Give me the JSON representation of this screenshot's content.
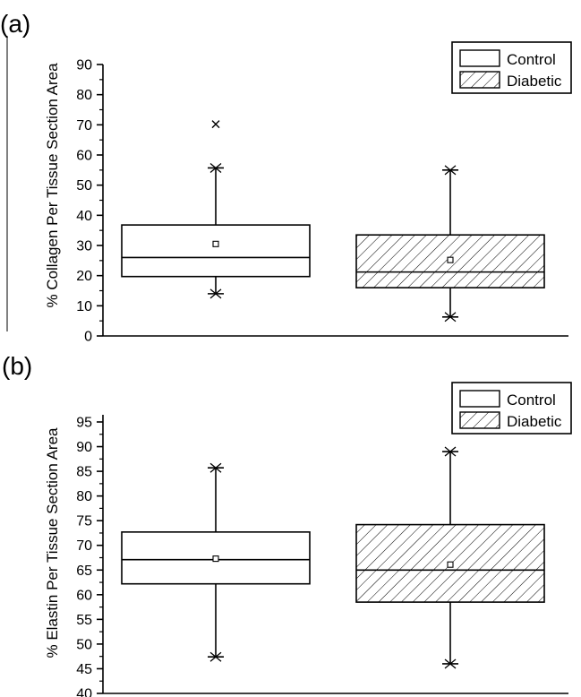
{
  "chart_data": [
    {
      "type": "box",
      "panel_label": "(a)",
      "title": "",
      "xlabel": "",
      "ylabel": "% Collagen Per Tissue Section Area",
      "ylim": [
        0,
        90
      ],
      "yticks": [
        0,
        10,
        20,
        30,
        40,
        50,
        60,
        70,
        80,
        90
      ],
      "legend": {
        "placement": "top-right",
        "entries": [
          "Control",
          "Diabetic"
        ]
      },
      "series": [
        {
          "name": "Control",
          "pattern": "none",
          "whisker_low": 14,
          "q1": 19.7,
          "median": 26,
          "q3": 36.8,
          "whisker_high": 55.7,
          "mean": 30.5,
          "outliers": [
            70.2
          ]
        },
        {
          "name": "Diabetic",
          "pattern": "hatch",
          "whisker_low": 6.3,
          "q1": 16,
          "median": 21.2,
          "q3": 33.5,
          "whisker_high": 55,
          "mean": 25.2,
          "outliers": []
        }
      ]
    },
    {
      "type": "box",
      "panel_label": "(b)",
      "title": "",
      "xlabel": "",
      "ylabel": "% Elastin Per Tissue Section Area",
      "ylim": [
        40,
        95
      ],
      "yticks": [
        40,
        45,
        50,
        55,
        60,
        65,
        70,
        75,
        80,
        85,
        90,
        95
      ],
      "legend": {
        "placement": "top-right",
        "entries": [
          "Control",
          "Diabetic"
        ]
      },
      "series": [
        {
          "name": "Control",
          "pattern": "none",
          "whisker_low": 47.4,
          "q1": 62.2,
          "median": 67.1,
          "q3": 72.7,
          "whisker_high": 85.7,
          "mean": 67.3,
          "outliers": []
        },
        {
          "name": "Diabetic",
          "pattern": "hatch",
          "whisker_low": 46,
          "q1": 58.5,
          "median": 65,
          "q3": 74.2,
          "whisker_high": 89,
          "mean": 66.1,
          "outliers": []
        }
      ]
    }
  ]
}
